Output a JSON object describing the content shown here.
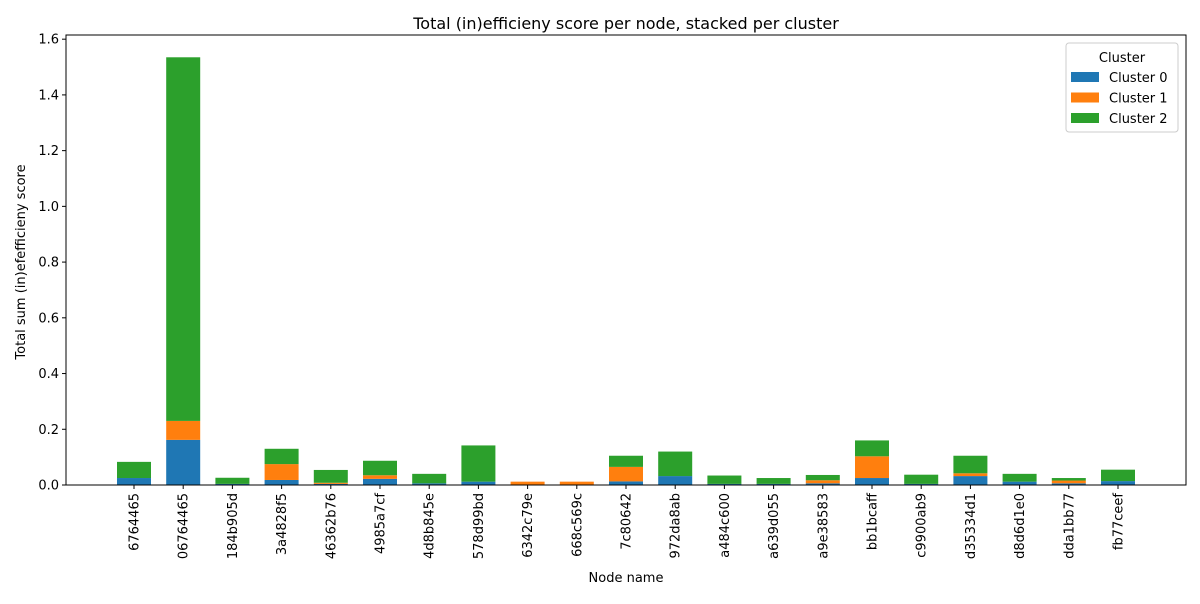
{
  "chart_data": {
    "type": "bar",
    "stacked": true,
    "title": "Total (in)efficieny score per node, stacked per cluster",
    "xlabel": "Node name",
    "ylabel": "Total sum (in)efefficieny score",
    "ylim": [
      0,
      1.615
    ],
    "yticks": [
      0.0,
      0.2,
      0.4,
      0.6,
      0.8,
      1.0,
      1.2,
      1.4,
      1.6
    ],
    "ytick_labels": [
      "0.0",
      "0.2",
      "0.4",
      "0.6",
      "0.8",
      "1.0",
      "1.2",
      "1.4",
      "1.6"
    ],
    "grid": false,
    "legend": {
      "title": "Cluster",
      "placement": "top-right"
    },
    "categories": [
      "6764465",
      "06764465",
      "184b905d",
      "3a4828f5",
      "46362b76",
      "4985a7cf",
      "4d8b845e",
      "578d99bd",
      "6342c79e",
      "668c569c",
      "7c80642",
      "972da8ab",
      "a484c600",
      "a639d055",
      "a9e38583",
      "bb1bcaff",
      "c9900ab9",
      "d35334d1",
      "d8d6d1e0",
      "dda1bb77",
      "fb77ceef"
    ],
    "series": [
      {
        "name": "Cluster 0",
        "color": "#1f77b4",
        "values": [
          0.025,
          0.162,
          0.004,
          0.018,
          0.004,
          0.022,
          0.006,
          0.012,
          0.001,
          0.001,
          0.013,
          0.032,
          0.004,
          0.004,
          0.006,
          0.025,
          0.004,
          0.032,
          0.012,
          0.006,
          0.014
        ]
      },
      {
        "name": "Cluster 1",
        "color": "#ff7f0e",
        "values": [
          0.0,
          0.068,
          0.0,
          0.057,
          0.004,
          0.013,
          0.0,
          0.0,
          0.011,
          0.011,
          0.052,
          0.0,
          0.0,
          0.0,
          0.011,
          0.078,
          0.0,
          0.01,
          0.0,
          0.01,
          0.0
        ]
      },
      {
        "name": "Cluster 2",
        "color": "#2ca02c",
        "values": [
          0.058,
          1.305,
          0.022,
          0.055,
          0.046,
          0.052,
          0.034,
          0.13,
          0.0,
          0.0,
          0.04,
          0.088,
          0.03,
          0.021,
          0.019,
          0.057,
          0.033,
          0.063,
          0.028,
          0.009,
          0.041
        ]
      }
    ]
  }
}
